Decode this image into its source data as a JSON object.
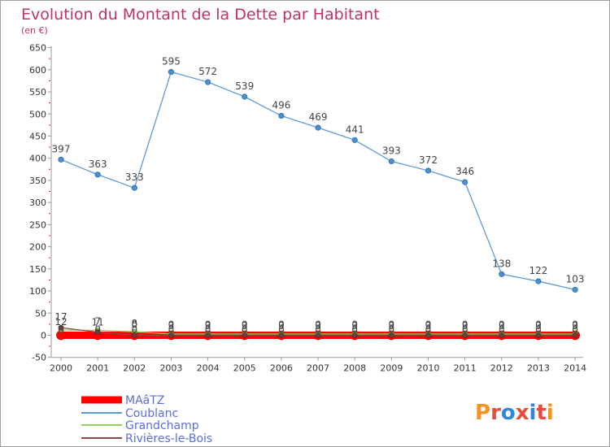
{
  "title": "Evolution du Montant de la Dette par Habitant",
  "subtitle": "(en €)",
  "logo_text": "Proxiti",
  "chart_data": {
    "type": "line",
    "x": [
      "2000",
      "2001",
      "2002",
      "2003",
      "2004",
      "2005",
      "2006",
      "2007",
      "2008",
      "2009",
      "2010",
      "2011",
      "2012",
      "2013",
      "2014"
    ],
    "ylim": [
      -50,
      650
    ],
    "yticks": [
      -50,
      0,
      50,
      100,
      150,
      200,
      250,
      300,
      350,
      400,
      450,
      500,
      550,
      600,
      650
    ],
    "grid": false,
    "legend_position": "bottom-left",
    "series": [
      {
        "name": "MAâTZ",
        "color": "#ff0000",
        "values": [
          0,
          0,
          0,
          0,
          0,
          0,
          0,
          0,
          0,
          0,
          0,
          0,
          0,
          0,
          0
        ]
      },
      {
        "name": "Coublanc",
        "color": "#5b9bd5",
        "values": [
          397,
          363,
          333,
          595,
          572,
          539,
          496,
          469,
          441,
          393,
          372,
          346,
          138,
          122,
          103
        ]
      },
      {
        "name": "Grandchamp",
        "color": "#99cc66",
        "values": [
          12,
          11,
          8,
          3,
          3,
          3,
          3,
          3,
          3,
          3,
          3,
          3,
          3,
          3,
          3
        ]
      },
      {
        "name": "Rivières-le-Bois",
        "color": "#8b4a4a",
        "values": [
          17,
          7,
          0,
          0,
          0,
          0,
          0,
          0,
          0,
          0,
          0,
          0,
          0,
          0,
          0
        ]
      }
    ]
  }
}
